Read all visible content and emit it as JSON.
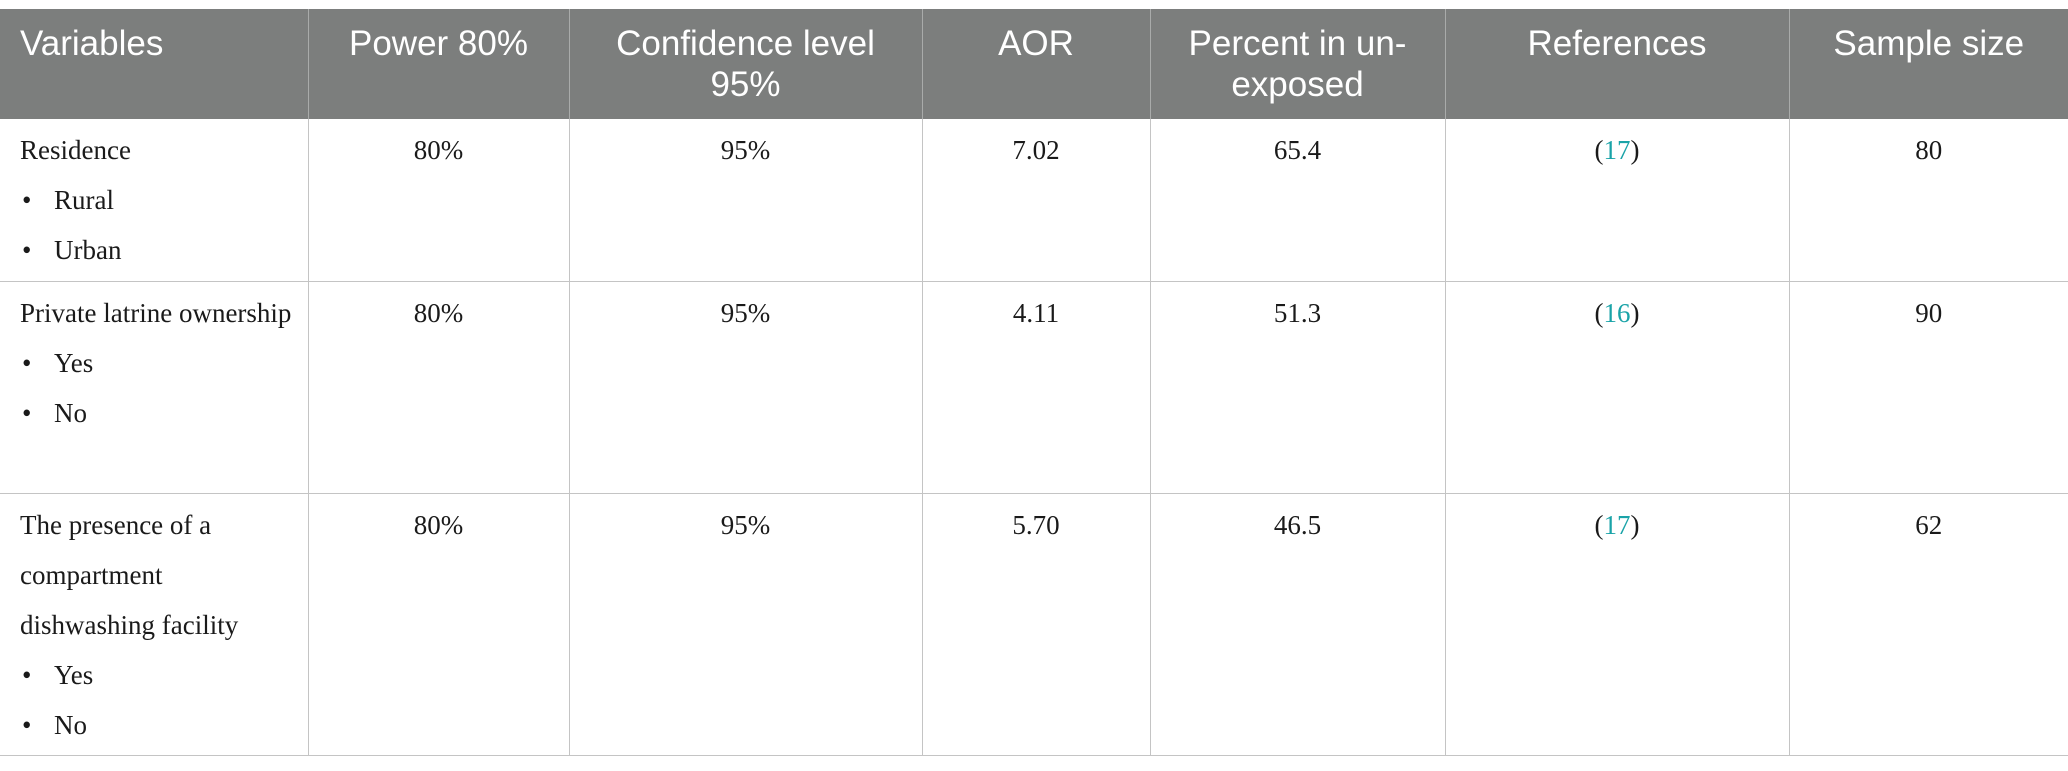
{
  "table": {
    "headers": [
      "Variables",
      "Power 80%",
      "Confidence level 95%",
      "AOR",
      "Percent in un-exposed",
      "References",
      "Sample size"
    ],
    "rows": [
      {
        "variable": "Residence",
        "options": [
          "Rural",
          "Urban"
        ],
        "power": "80%",
        "confidence": "95%",
        "aor": "7.02",
        "percent_unexposed": "65.4",
        "reference": "17",
        "sample_size": "80"
      },
      {
        "variable": "Private latrine ownership",
        "options": [
          "Yes",
          "No"
        ],
        "power": "80%",
        "confidence": "95%",
        "aor": "4.11",
        "percent_unexposed": "51.3",
        "reference": "16",
        "sample_size": "90"
      },
      {
        "variable": "The presence of a compartment dishwashing facility",
        "options": [
          "Yes",
          "No"
        ],
        "power": "80%",
        "confidence": "95%",
        "aor": "5.70",
        "percent_unexposed": "46.5",
        "reference": "17",
        "sample_size": "62"
      }
    ],
    "colors": {
      "header_bg": "#7c7e7d",
      "header_text": "#ffffff",
      "reference_link": "#1aa3a8",
      "grid_line": "#c4c4c4"
    }
  }
}
